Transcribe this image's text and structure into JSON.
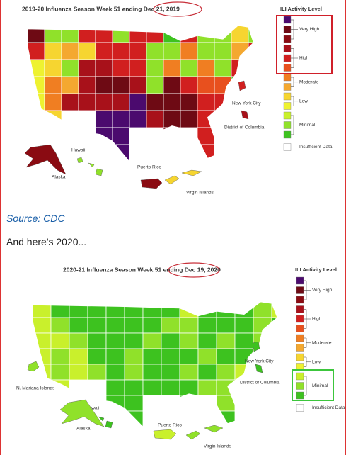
{
  "maps": [
    {
      "title": "2019-20 Influenza Season Week 51 ending Dec 21, 2019",
      "legend": {
        "title": "ILI Activity Level",
        "colors": [
          "#4b0a6e",
          "#6e0a14",
          "#8a0b12",
          "#a8111a",
          "#d11f1f",
          "#e8501e",
          "#f07e22",
          "#f4a830",
          "#f6d530",
          "#eef230",
          "#c9f02c",
          "#90e12a",
          "#3dc21f"
        ],
        "labels": [
          "Very High",
          "High",
          "Moderate",
          "Low",
          "Minimal",
          "Insufficient Data"
        ],
        "insufficient_color": "#ffffff"
      },
      "highlight_color": "#d0202a",
      "tiles": [
        "1bb44b44c4bb8b",
        "4878444bb6bb74",
        "98b3344b6b6b44",
        "9673113b1455c.",
        "9633330111444.",
        ".8..0003114...",
        "....00..1.4...",
        ".....0....4..."
      ],
      "places": [
        {
          "label": "New York City",
          "level": 4
        },
        {
          "label": "District of Columbia",
          "level": 3
        },
        {
          "label": "Hawaii",
          "level": 11
        },
        {
          "label": "Alaska",
          "level": 2
        },
        {
          "label": "Puerto Rico",
          "level": 2
        },
        {
          "label": "Virgin Islands",
          "level": 8
        }
      ]
    },
    {
      "title": "2020-21 Influenza Season Week 51 ending Dec 19, 2020",
      "legend": {
        "title": "ILI Activity Level",
        "colors": [
          "#4b0a6e",
          "#6e0a14",
          "#8a0b12",
          "#a8111a",
          "#d11f1f",
          "#e8501e",
          "#f07e22",
          "#f4a830",
          "#f6d530",
          "#eef230",
          "#c9f02c",
          "#90e12a",
          "#3dc21f"
        ],
        "labels": [
          "Very High",
          "High",
          "Moderate",
          "Low",
          "Minimal",
          "Insufficient Data"
        ],
        "insufficient_color": "#ffffff"
      },
      "highlight_color": "#3cc63c",
      "tiles": [
        "acccccccacccba",
        "abcccccbbcccbc",
        "aabcccbcbcbcbc",
        "abaccbcccbcca.",
        "ababcbccbcba..",
        ".a..cccccbb...",
        "....cc..c.b...",
        ".....c....c..."
      ],
      "places": [
        {
          "label": "New York City",
          "level": 12
        },
        {
          "label": "District of Columbia",
          "level": 12
        },
        {
          "label": "Hawaii",
          "level": 12
        },
        {
          "label": "Alaska",
          "level": 11
        },
        {
          "label": "Puerto Rico",
          "level": 10
        },
        {
          "label": "Virgin Islands",
          "level": 11
        },
        {
          "label": "N. Mariana Islands",
          "level": 11
        }
      ]
    }
  ],
  "source": "Source: CDC",
  "paragraph": "And here's 2020..."
}
